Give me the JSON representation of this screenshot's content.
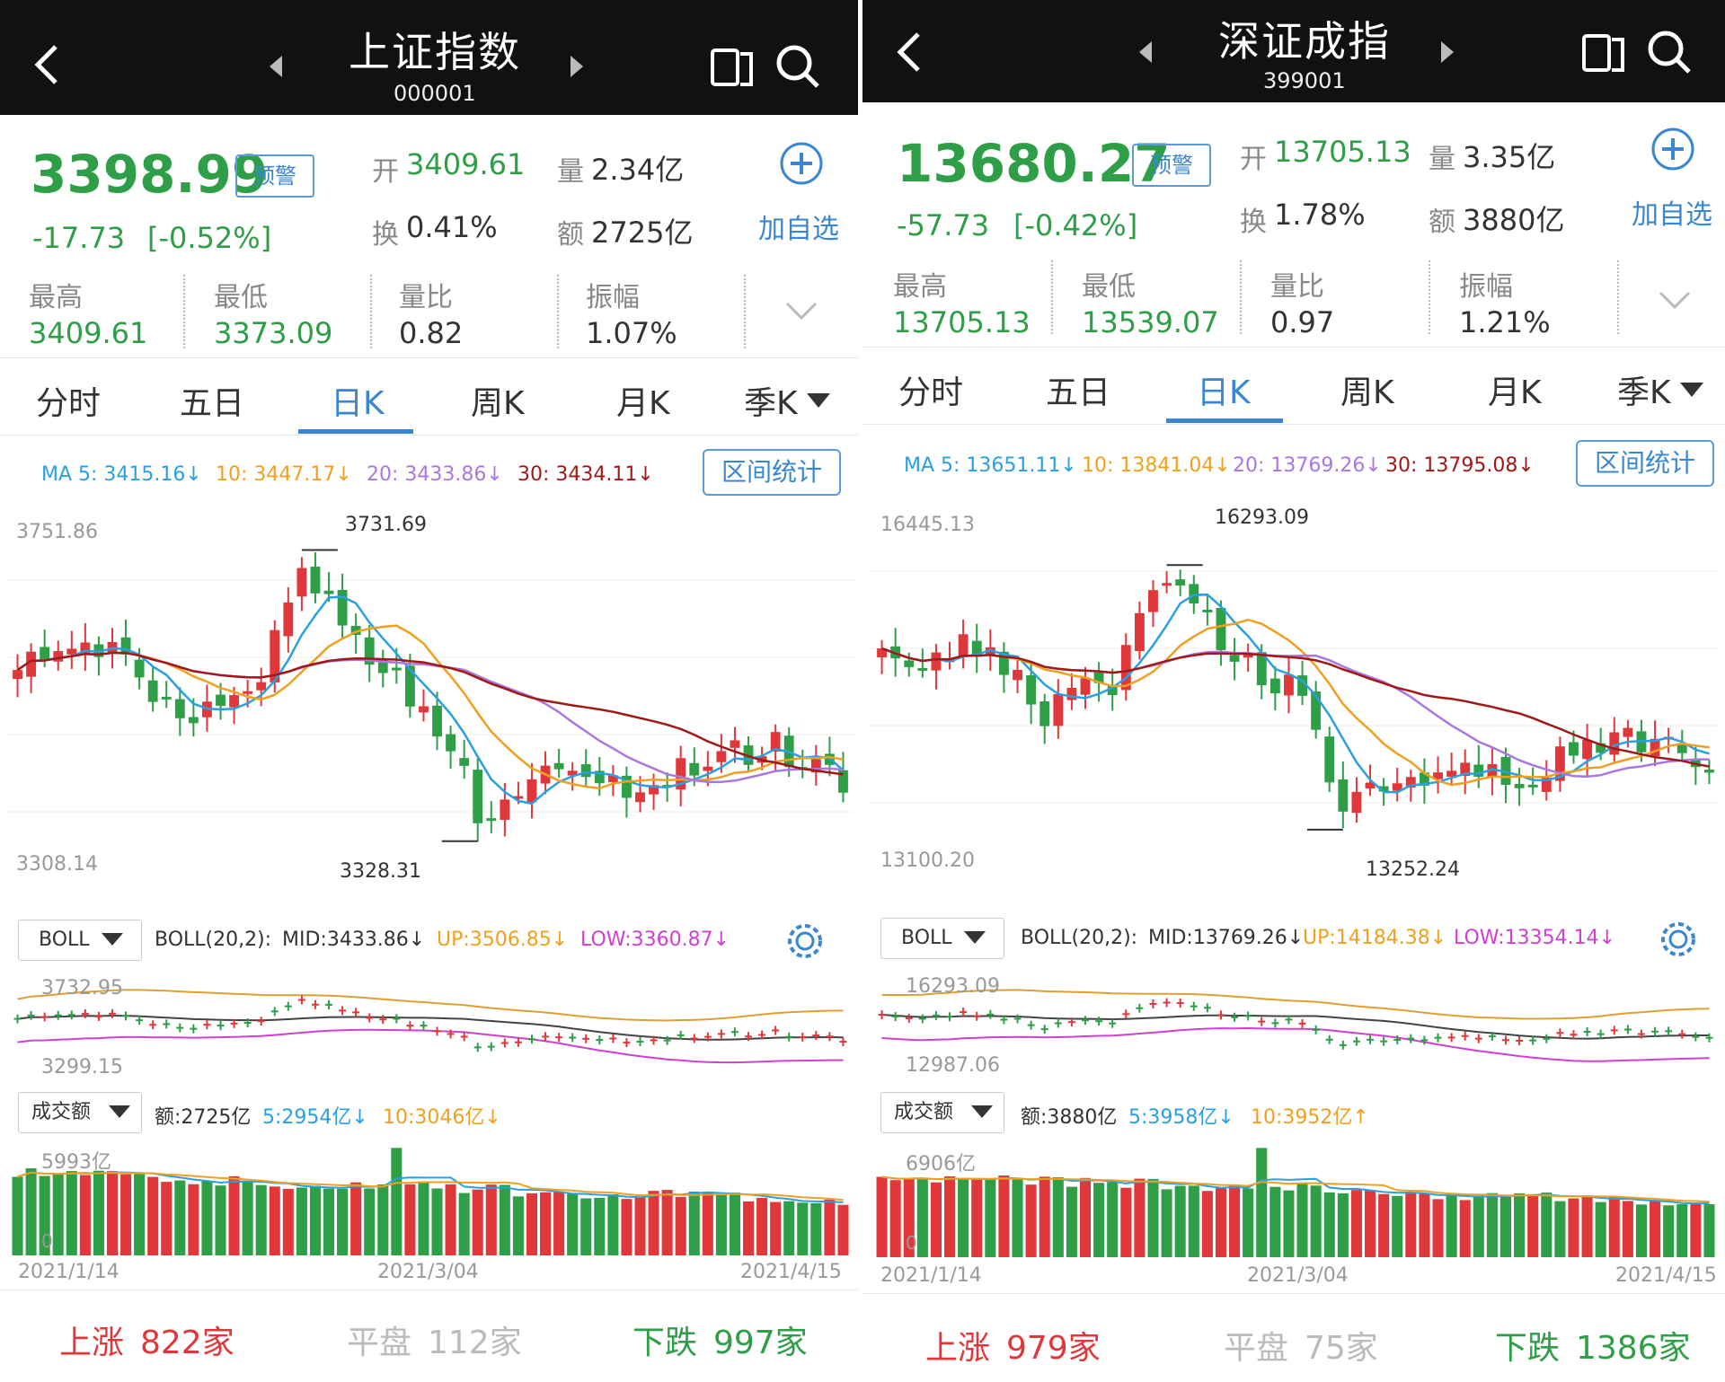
{
  "panels": [
    {
      "header": {
        "title": "上证指数",
        "code": "000001"
      },
      "quote": {
        "price": "3398.99",
        "warn_label": "预警",
        "change": "-17.73",
        "change_pct": "[-0.52%]",
        "open_label": "开",
        "open": "3409.61",
        "volume_label": "量",
        "volume": "2.34亿",
        "turnover_label": "换",
        "turnover": "0.41%",
        "amount_label": "额",
        "amount": "2725亿",
        "add_watch": "加自选",
        "stats": [
          {
            "label": "最高",
            "value": "3409.61",
            "color": "green"
          },
          {
            "label": "最低",
            "value": "3373.09",
            "color": "green"
          },
          {
            "label": "量比",
            "value": "0.82",
            "color": "dark"
          },
          {
            "label": "振幅",
            "value": "1.07%",
            "color": "dark"
          }
        ]
      },
      "tabs": [
        "分时",
        "五日",
        "日K",
        "周K",
        "月K",
        "季K"
      ],
      "active_tab": 2,
      "ma": {
        "ma5": "MA 5: 3415.16↓",
        "ma10": "10: 3447.17↓",
        "ma20": "20: 3433.86↓",
        "ma30": "30: 3434.11↓"
      },
      "range_btn": "区间统计",
      "kline": {
        "top_label": "3751.86",
        "bottom_label": "3308.14",
        "high_mark": "3731.69",
        "low_mark": "3328.31"
      },
      "boll": {
        "select": "BOLL",
        "text": "BOLL(20,2):",
        "mid": "MID:3433.86↓",
        "up": "UP:3506.85↓",
        "low": "LOW:3360.87↓",
        "top_label": "3732.95",
        "bottom_label": "3299.15"
      },
      "amount_ind": {
        "select": "成交额",
        "text": "额:2725亿",
        "ma5": "5:2954亿↓",
        "ma10": "10:3046亿↓",
        "top_label": "5993亿",
        "zero": "0"
      },
      "dates": [
        "2021/1/14",
        "2021/3/04",
        "2021/4/15"
      ],
      "footer": {
        "up_label": "上涨",
        "up": "822家",
        "flat_label": "平盘",
        "flat": "112家",
        "down_label": "下跌",
        "down": "997家"
      }
    },
    {
      "header": {
        "title": "深证成指",
        "code": "399001"
      },
      "quote": {
        "price": "13680.27",
        "warn_label": "预警",
        "change": "-57.73",
        "change_pct": "[-0.42%]",
        "open_label": "开",
        "open": "13705.13",
        "volume_label": "量",
        "volume": "3.35亿",
        "turnover_label": "换",
        "turnover": "1.78%",
        "amount_label": "额",
        "amount": "3880亿",
        "add_watch": "加自选",
        "stats": [
          {
            "label": "最高",
            "value": "13705.13",
            "color": "green"
          },
          {
            "label": "最低",
            "value": "13539.07",
            "color": "green"
          },
          {
            "label": "量比",
            "value": "0.97",
            "color": "dark"
          },
          {
            "label": "振幅",
            "value": "1.21%",
            "color": "dark"
          }
        ]
      },
      "tabs": [
        "分时",
        "五日",
        "日K",
        "周K",
        "月K",
        "季K"
      ],
      "active_tab": 2,
      "ma": {
        "ma5": "MA 5: 13651.11↓",
        "ma10": "10: 13841.04↓",
        "ma20": "20: 13769.26↓",
        "ma30": "30: 13795.08↓"
      },
      "range_btn": "区间统计",
      "kline": {
        "top_label": "16445.13",
        "bottom_label": "13100.20",
        "high_mark": "16293.09",
        "low_mark": "13252.24"
      },
      "boll": {
        "select": "BOLL",
        "text": "BOLL(20,2):",
        "mid": "MID:13769.26↓",
        "up": "UP:14184.38↓",
        "low": "LOW:13354.14↓",
        "top_label": "16293.09",
        "bottom_label": "12987.06"
      },
      "amount_ind": {
        "select": "成交额",
        "text": "额:3880亿",
        "ma5": "5:3958亿↓",
        "ma10": "10:3952亿↑",
        "top_label": "6906亿",
        "zero": "0"
      },
      "dates": [
        "2021/1/14",
        "2021/3/04",
        "2021/4/15"
      ],
      "footer": {
        "up_label": "上涨",
        "up": "979家",
        "flat_label": "平盘",
        "flat": "75家",
        "down_label": "下跌",
        "down": "1386家"
      }
    }
  ],
  "colors": {
    "up": "#e0383a",
    "down": "#2e9e47",
    "ma5": "#2aa0e0",
    "ma10": "#f0a020",
    "ma20": "#a878e0",
    "ma30": "#a01818",
    "boll_mid": "#444444",
    "boll_up": "#e0a030",
    "boll_low": "#d040d0",
    "accent": "#3a86d0"
  },
  "icons": [
    "back-icon",
    "prev-arrow-icon",
    "next-arrow-icon",
    "landscape-icon",
    "search-icon",
    "add-icon",
    "expand-chevron-icon",
    "settings-gear-icon",
    "dropdown-triangle-icon"
  ]
}
